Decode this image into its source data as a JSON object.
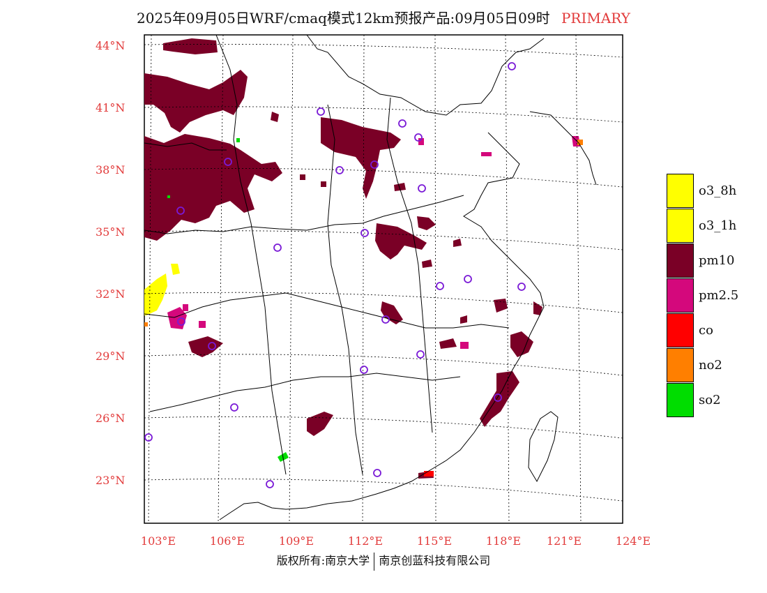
{
  "header": {
    "title": "2025年09月05日WRF/cmaq模式12km预报产品:09月05日09时",
    "tag": "PRIMARY"
  },
  "axes": {
    "lat_labels": [
      "44°N",
      "41°N",
      "38°N",
      "35°N",
      "32°N",
      "29°N",
      "26°N",
      "23°N"
    ],
    "lon_labels": [
      "103°E",
      "106°E",
      "109°E",
      "112°E",
      "115°E",
      "118°E",
      "121°E",
      "124°E"
    ]
  },
  "legend": [
    {
      "label": "o3_8h",
      "color": "#ffff00"
    },
    {
      "label": "o3_1h",
      "color": "#ffff00"
    },
    {
      "label": "pm10",
      "color": "#7a0026"
    },
    {
      "label": "pm2.5",
      "color": "#d4087c"
    },
    {
      "label": "co",
      "color": "#ff0000"
    },
    {
      "label": "no2",
      "color": "#ff7f00"
    },
    {
      "label": "so2",
      "color": "#00dd00"
    }
  ],
  "footer": {
    "left": "版权所有:南京大学",
    "right": "南京创蓝科技有限公司"
  },
  "colors": {
    "axis_labels": "#e23b3b",
    "station_marker": "#7a1ad6"
  }
}
